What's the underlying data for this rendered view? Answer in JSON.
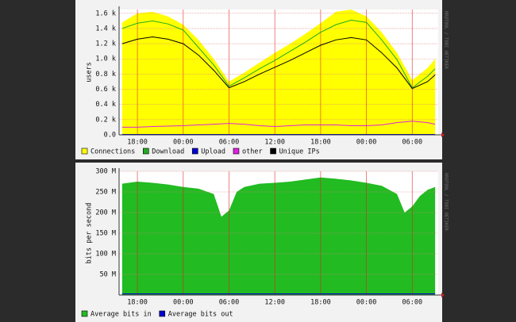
{
  "chart_data": [
    {
      "type": "area",
      "y_label": "users",
      "side_text": "RRDTOOL / TOBI OETIKER",
      "x": [
        -2,
        0,
        2,
        4,
        6,
        8,
        10,
        12,
        14,
        16,
        18,
        20,
        22,
        24,
        26,
        28,
        30,
        32,
        34,
        36,
        38,
        39
      ],
      "xlim": [
        -2.4,
        39.4
      ],
      "xticks": [
        {
          "value": 0,
          "label": "18:00"
        },
        {
          "value": 6,
          "label": "00:00"
        },
        {
          "value": 12,
          "label": "06:00"
        },
        {
          "value": 18,
          "label": "12:00"
        },
        {
          "value": 24,
          "label": "18:00"
        },
        {
          "value": 30,
          "label": "00:00"
        },
        {
          "value": 36,
          "label": "06:00"
        }
      ],
      "ylim": [
        0,
        1650
      ],
      "yticks": [
        {
          "value": 0,
          "label": "0.0"
        },
        {
          "value": 200,
          "label": "0.2 k"
        },
        {
          "value": 400,
          "label": "0.4 k"
        },
        {
          "value": 600,
          "label": "0.6 k"
        },
        {
          "value": 800,
          "label": "0.8 k"
        },
        {
          "value": 1000,
          "label": "1.0 k"
        },
        {
          "value": 1200,
          "label": "1.2 k"
        },
        {
          "value": 1400,
          "label": "1.4 k"
        },
        {
          "value": 1600,
          "label": "1.6 k"
        }
      ],
      "grid": true,
      "series": [
        {
          "name": "Connections",
          "color": "#ffff00",
          "style": "area",
          "values": [
            1480,
            1600,
            1620,
            1560,
            1450,
            1250,
            1000,
            700,
            820,
            950,
            1080,
            1200,
            1330,
            1470,
            1620,
            1650,
            1560,
            1350,
            1080,
            720,
            880,
            1000
          ]
        },
        {
          "name": "Download",
          "color": "#22aa22",
          "style": "line",
          "values": [
            1400,
            1470,
            1500,
            1460,
            1380,
            1150,
            920,
            640,
            750,
            870,
            980,
            1100,
            1220,
            1350,
            1450,
            1510,
            1480,
            1250,
            990,
            620,
            770,
            870
          ]
        },
        {
          "name": "Upload",
          "color": "#0000cc",
          "style": "line",
          "values": [
            5,
            5,
            5,
            5,
            5,
            5,
            5,
            5,
            5,
            5,
            5,
            5,
            5,
            5,
            5,
            5,
            5,
            5,
            5,
            5,
            5,
            5
          ]
        },
        {
          "name": "other",
          "color": "#dd22dd",
          "style": "line",
          "values": [
            100,
            100,
            110,
            115,
            120,
            130,
            140,
            150,
            140,
            120,
            110,
            120,
            130,
            130,
            130,
            120,
            120,
            130,
            160,
            180,
            160,
            140
          ]
        },
        {
          "name": "Unique IPs",
          "color": "#000000",
          "style": "line",
          "values": [
            1200,
            1260,
            1290,
            1260,
            1200,
            1050,
            850,
            620,
            700,
            800,
            890,
            980,
            1080,
            1180,
            1250,
            1280,
            1250,
            1080,
            880,
            610,
            700,
            790
          ]
        }
      ]
    },
    {
      "type": "area",
      "y_label": "bits per second",
      "side_text": "RRDTOOL / TOBI OETIKER",
      "x": [
        -2,
        0,
        2,
        4,
        6,
        8,
        10,
        11,
        12,
        13,
        14,
        16,
        18,
        20,
        22,
        24,
        26,
        28,
        30,
        32,
        34,
        35,
        36,
        37,
        38,
        39
      ],
      "xlim": [
        -2.4,
        39.4
      ],
      "xticks": [
        {
          "value": 0,
          "label": "18:00"
        },
        {
          "value": 6,
          "label": "00:00"
        },
        {
          "value": 12,
          "label": "06:00"
        },
        {
          "value": 18,
          "label": "12:00"
        },
        {
          "value": 24,
          "label": "18:00"
        },
        {
          "value": 30,
          "label": "00:00"
        },
        {
          "value": 36,
          "label": "06:00"
        }
      ],
      "ylim": [
        0,
        300000000
      ],
      "yticks": [
        {
          "value": 50000000,
          "label": "50 M"
        },
        {
          "value": 100000000,
          "label": "100 M"
        },
        {
          "value": 150000000,
          "label": "150 M"
        },
        {
          "value": 200000000,
          "label": "200 M"
        },
        {
          "value": 250000000,
          "label": "250 M"
        },
        {
          "value": 300000000,
          "label": "300 M"
        }
      ],
      "grid": true,
      "series": [
        {
          "name": "Average bits in",
          "color": "#22bb22",
          "style": "area",
          "values": [
            270000000,
            275000000,
            272000000,
            268000000,
            262000000,
            258000000,
            245000000,
            190000000,
            205000000,
            250000000,
            262000000,
            270000000,
            272000000,
            275000000,
            280000000,
            285000000,
            282000000,
            278000000,
            272000000,
            265000000,
            245000000,
            200000000,
            215000000,
            240000000,
            255000000,
            262000000
          ]
        },
        {
          "name": "Average bits out",
          "color": "#0000cc",
          "style": "line",
          "values": [
            3000000,
            3000000,
            3000000,
            3000000,
            3000000,
            3000000,
            3000000,
            3000000,
            3000000,
            3000000,
            3000000,
            3000000,
            3000000,
            3000000,
            3000000,
            3000000,
            3000000,
            3000000,
            3000000,
            3000000,
            3000000,
            3000000,
            3000000,
            3000000,
            3000000,
            3000000
          ]
        }
      ]
    }
  ]
}
